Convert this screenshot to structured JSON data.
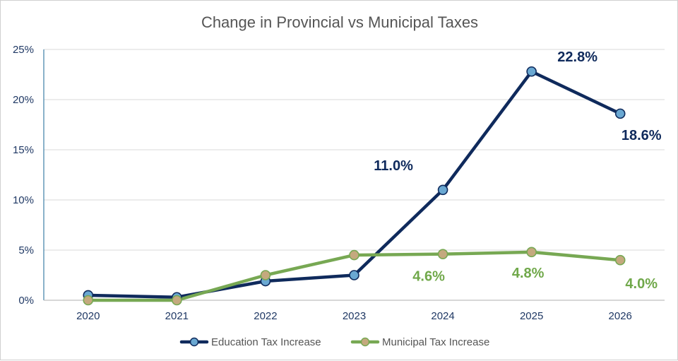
{
  "chart_data": {
    "type": "line",
    "title": "Change in Provincial vs Municipal Taxes",
    "xlabel": "",
    "ylabel": "",
    "categories": [
      "2020",
      "2021",
      "2022",
      "2023",
      "2024",
      "2025",
      "2026"
    ],
    "ylim": [
      0,
      25
    ],
    "yticks": [
      0,
      5,
      10,
      15,
      20,
      25
    ],
    "ytick_labels": [
      "0%",
      "5%",
      "10%",
      "15%",
      "20%",
      "25%"
    ],
    "grid": true,
    "legend_position": "bottom",
    "series": [
      {
        "name": "Education Tax Increase",
        "values": [
          0.5,
          0.3,
          1.9,
          2.5,
          11.0,
          22.8,
          18.6
        ],
        "line_color": "#0f2a5c",
        "marker_color": "#6aa8d2",
        "data_labels": [
          null,
          null,
          null,
          null,
          "11.0%",
          "22.8%",
          "18.6%"
        ],
        "label_color": "#0f2a5c"
      },
      {
        "name": "Municipal Tax Increase",
        "values": [
          0.0,
          0.0,
          2.5,
          4.5,
          4.6,
          4.8,
          4.0
        ],
        "line_color": "#77a853",
        "marker_color": "#c4a97e",
        "data_labels": [
          null,
          null,
          null,
          null,
          "4.6%",
          "4.8%",
          "4.0%"
        ],
        "label_color": "#70a84a"
      }
    ]
  }
}
